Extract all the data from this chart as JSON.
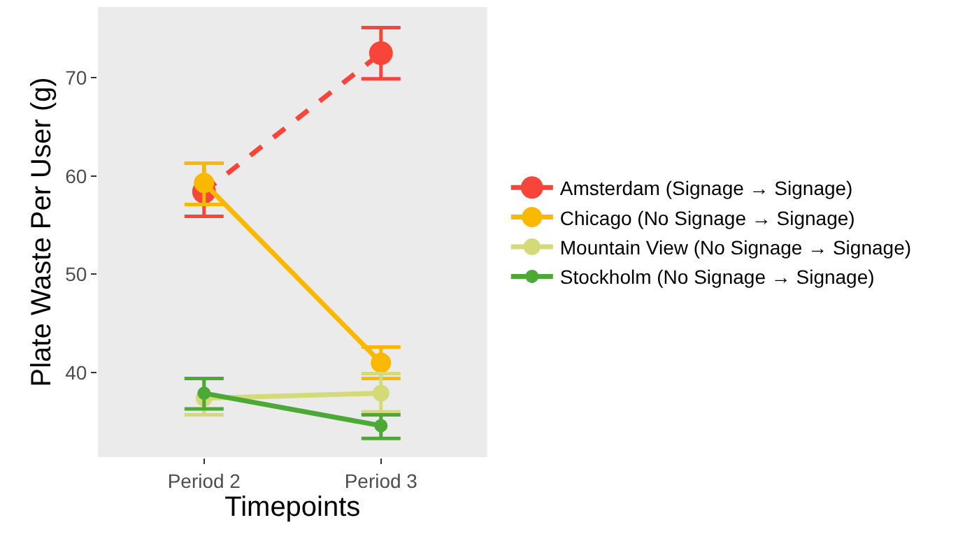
{
  "chart_data": {
    "type": "line",
    "xlabel": "Timepoints",
    "ylabel": "Plate Waste Per User (g)",
    "categories": [
      "Period 2",
      "Period 3"
    ],
    "series": [
      {
        "name": "Amsterdam (Signage → Signage)",
        "color": "#f8453a",
        "values": [
          58.4,
          72.5
        ],
        "errors": [
          [
            55.9,
            61.3
          ],
          [
            69.9,
            75.1
          ]
        ],
        "line_style": "dashed"
      },
      {
        "name": "Chicago (No Signage → Signage)",
        "color": "#fbb800",
        "values": [
          59.3,
          41.0
        ],
        "errors": [
          [
            57.1,
            61.3
          ],
          [
            39.4,
            42.6
          ]
        ],
        "line_style": "solid"
      },
      {
        "name": "Mountain View (No Signage → Signage)",
        "color": "#d4da78",
        "values": [
          37.4,
          37.9
        ],
        "errors": [
          [
            35.7,
            39.4
          ],
          [
            36.0,
            39.9
          ]
        ],
        "line_style": "solid"
      },
      {
        "name": "Stockholm (No Signage → Signage)",
        "color": "#4ca935",
        "values": [
          37.9,
          34.6
        ],
        "errors": [
          [
            36.3,
            39.4
          ],
          [
            33.3,
            35.7
          ]
        ],
        "line_style": "solid"
      }
    ],
    "ylim": [
      31.4,
      77.2
    ],
    "yticks": [
      40,
      50,
      60,
      70
    ],
    "grid": false,
    "legend": "right",
    "marker": "circle"
  }
}
